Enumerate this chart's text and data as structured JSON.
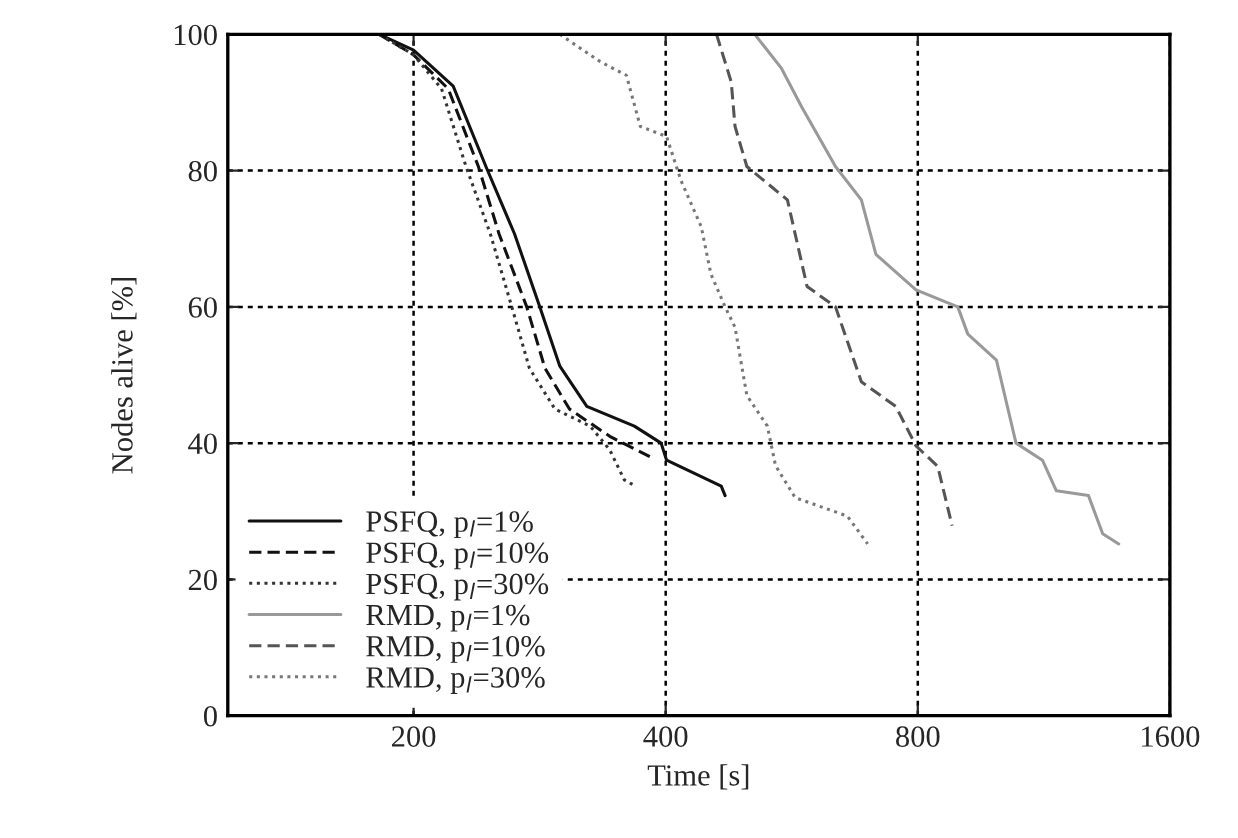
{
  "chart_data": {
    "type": "line",
    "xlabel": "Time [s]",
    "ylabel": "Nodes alive [%]",
    "log": "x",
    "xlim": [
      120,
      1600
    ],
    "xticks": [
      200,
      400,
      800,
      1600
    ],
    "ylim": [
      0,
      100
    ],
    "yticks": [
      0,
      20,
      40,
      60,
      80,
      100
    ],
    "grid": true,
    "legend": "bottom left",
    "marker": "none",
    "series": [
      {
        "name": "PSFQ, p$_{l}$=1%",
        "color": "#111111",
        "line_style": "solid",
        "x": [
          182,
          200,
          223,
          244,
          264,
          283,
          299,
          322,
          367,
          395,
          401,
          466,
          471
        ],
        "values": [
          100,
          97.7,
          92.4,
          80.6,
          70.7,
          60,
          51.3,
          45.4,
          42.5,
          40,
          37.5,
          33.7,
          32.3
        ]
      },
      {
        "name": "PSFQ, p$_{l}$=10%",
        "color": "#111111",
        "line_style": "dashed",
        "x": [
          182,
          200,
          220,
          239,
          253,
          273,
          287,
          307,
          343,
          383
        ],
        "values": [
          100,
          97,
          92,
          80.6,
          70.7,
          60,
          51,
          45,
          41,
          38
        ]
      },
      {
        "name": "PSFQ, p$_{l}$=30%",
        "color": "#333333",
        "line_style": "dotted",
        "x": [
          182,
          200,
          216,
          231,
          247,
          262,
          275,
          295,
          325,
          343,
          357,
          368
        ],
        "values": [
          100,
          97,
          92,
          80.6,
          70.7,
          60,
          51,
          45,
          42.5,
          39,
          34.6,
          33.7
        ]
      },
      {
        "name": "RMD, p$_{l}$=1%",
        "color": "#999999",
        "line_style": "solid",
        "x": [
          511,
          550,
          581,
          638,
          685,
          713,
          796,
          893,
          918,
          993,
          1048,
          1127,
          1171,
          1279,
          1330,
          1390
        ],
        "values": [
          100,
          95,
          89.4,
          80.6,
          75.7,
          67.7,
          62.5,
          60,
          56,
          52.2,
          40,
          37.5,
          33,
          32.3,
          26.7,
          25.2
        ]
      },
      {
        "name": "RMD, p$_{l}$=10%",
        "color": "#555555",
        "line_style": "dashed",
        "x": [
          460,
          479,
          484,
          500,
          559,
          590,
          638,
          685,
          753,
          796,
          845,
          879
        ],
        "values": [
          100,
          93,
          86.5,
          80.6,
          75.7,
          63,
          60,
          49,
          45.4,
          39.6,
          36.6,
          27.9
        ]
      },
      {
        "name": "RMD, p$_{l}$=30%",
        "color": "#777777",
        "line_style": "dotted",
        "x": [
          299,
          334,
          359,
          373,
          401,
          417,
          441,
          453,
          471,
          484,
          500,
          529,
          541,
          571,
          659,
          697
        ],
        "values": [
          100,
          96,
          94,
          86.5,
          85,
          78.6,
          71.8,
          64.8,
          60,
          57,
          47,
          42.5,
          36.7,
          32,
          29.3,
          25.2
        ]
      }
    ]
  }
}
